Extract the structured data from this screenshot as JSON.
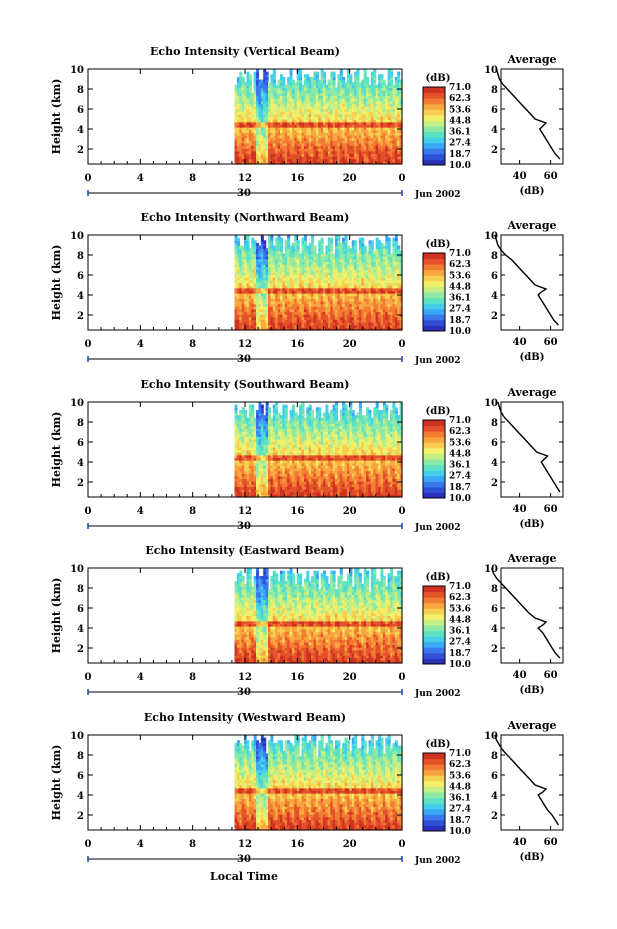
{
  "figure": {
    "xlabel": "Local Time",
    "date_label": "Jun 2002",
    "day_label": "30"
  },
  "colorbar": {
    "unit": "(dB)",
    "ticks": [
      "71.0",
      "62.3",
      "53.6",
      "44.8",
      "36.1",
      "27.4",
      "18.7",
      "10.0"
    ],
    "colors": [
      "#2a2fb8",
      "#2f4fd6",
      "#3a78ee",
      "#3aa8f5",
      "#45d0ea",
      "#5fe2c2",
      "#8ee9a6",
      "#c5ef84",
      "#f2f06a",
      "#f9cf4f",
      "#f8a640",
      "#f37c34",
      "#e4522a",
      "#cf3220"
    ]
  },
  "chart_data": [
    {
      "type": "heatmap",
      "title": "Echo Intensity (Vertical Beam)",
      "ylabel": "Height (km)",
      "x_ticks": [
        "0",
        "4",
        "8",
        "12",
        "16",
        "20",
        "0"
      ],
      "y_ticks": [
        "2",
        "4",
        "6",
        "8",
        "10"
      ],
      "xlim": [
        0,
        24
      ],
      "ylim": [
        0.5,
        10
      ],
      "clim": [
        10.0,
        71.0
      ],
      "data_start_hour": 11.2,
      "bright_band_km": 4.5,
      "profile": {
        "title": "Average",
        "xlabel": "(dB)",
        "x_ticks": [
          "40",
          "60"
        ],
        "y_ticks": [
          "2",
          "4",
          "6",
          "8",
          "10"
        ],
        "height_km": [
          1.0,
          1.5,
          2.0,
          2.5,
          3.0,
          3.5,
          4.0,
          4.3,
          4.6,
          5.0,
          5.5,
          6.0,
          6.5,
          7.0,
          7.5,
          8.0,
          8.5,
          9.0,
          9.5,
          10.0
        ],
        "db": [
          66,
          63,
          61,
          59,
          57,
          55,
          53,
          55,
          57,
          50,
          47,
          44,
          41,
          38,
          35,
          32,
          29,
          27,
          26,
          25
        ]
      }
    },
    {
      "type": "heatmap",
      "title": "Echo Intensity (Northward Beam)",
      "ylabel": "Height (km)",
      "x_ticks": [
        "0",
        "4",
        "8",
        "12",
        "16",
        "20",
        "0"
      ],
      "y_ticks": [
        "2",
        "4",
        "6",
        "8",
        "10"
      ],
      "xlim": [
        0,
        24
      ],
      "ylim": [
        0.5,
        10
      ],
      "clim": [
        10.0,
        71.0
      ],
      "data_start_hour": 11.2,
      "bright_band_km": 4.5,
      "profile": {
        "title": "Average",
        "xlabel": "(dB)",
        "x_ticks": [
          "40",
          "60"
        ],
        "y_ticks": [
          "2",
          "4",
          "6",
          "8",
          "10"
        ],
        "height_km": [
          1.0,
          1.5,
          2.0,
          2.5,
          3.0,
          3.5,
          4.0,
          4.3,
          4.6,
          5.0,
          5.5,
          6.0,
          6.5,
          7.0,
          7.5,
          8.0,
          8.5,
          9.0,
          9.5,
          10.0
        ],
        "db": [
          65,
          62,
          60,
          58,
          56,
          54,
          52,
          54,
          57,
          50,
          47,
          44,
          41,
          38,
          35,
          31,
          28,
          26,
          25,
          24
        ]
      }
    },
    {
      "type": "heatmap",
      "title": "Echo Intensity (Southward Beam)",
      "ylabel": "Height (km)",
      "x_ticks": [
        "0",
        "4",
        "8",
        "12",
        "16",
        "20",
        "0"
      ],
      "y_ticks": [
        "2",
        "4",
        "6",
        "8",
        "10"
      ],
      "xlim": [
        0,
        24
      ],
      "ylim": [
        0.5,
        10
      ],
      "clim": [
        10.0,
        71.0
      ],
      "data_start_hour": 11.2,
      "bright_band_km": 4.5,
      "profile": {
        "title": "Average",
        "xlabel": "(dB)",
        "x_ticks": [
          "40",
          "60"
        ],
        "y_ticks": [
          "2",
          "4",
          "6",
          "8",
          "10"
        ],
        "height_km": [
          1.0,
          1.5,
          2.0,
          2.5,
          3.0,
          3.5,
          4.0,
          4.3,
          4.6,
          5.0,
          5.5,
          6.0,
          6.5,
          7.0,
          7.5,
          8.0,
          8.5,
          9.0,
          9.5,
          10.0
        ],
        "db": [
          66,
          64,
          62,
          60,
          58,
          56,
          54,
          56,
          58,
          51,
          48,
          45,
          42,
          39,
          36,
          33,
          30,
          28,
          27,
          26
        ]
      }
    },
    {
      "type": "heatmap",
      "title": "Echo Intensity (Eastward Beam)",
      "ylabel": "Height (km)",
      "x_ticks": [
        "0",
        "4",
        "8",
        "12",
        "16",
        "20",
        "0"
      ],
      "y_ticks": [
        "2",
        "4",
        "6",
        "8",
        "10"
      ],
      "xlim": [
        0,
        24
      ],
      "ylim": [
        0.5,
        10
      ],
      "clim": [
        10.0,
        71.0
      ],
      "data_start_hour": 11.2,
      "bright_band_km": 4.5,
      "profile": {
        "title": "Average",
        "xlabel": "(dB)",
        "x_ticks": [
          "40",
          "60"
        ],
        "y_ticks": [
          "2",
          "4",
          "6",
          "8",
          "10"
        ],
        "height_km": [
          1.0,
          1.5,
          2.0,
          2.5,
          3.0,
          3.5,
          4.0,
          4.3,
          4.6,
          5.0,
          5.5,
          6.0,
          6.5,
          7.0,
          7.5,
          8.0,
          8.5,
          9.0,
          9.5,
          10.0
        ],
        "db": [
          66,
          63,
          61,
          59,
          57,
          55,
          52,
          55,
          57,
          50,
          46,
          43,
          40,
          37,
          34,
          31,
          28,
          25,
          23,
          22
        ]
      }
    },
    {
      "type": "heatmap",
      "title": "Echo Intensity (Westward Beam)",
      "ylabel": "Height (km)",
      "x_ticks": [
        "0",
        "4",
        "8",
        "12",
        "16",
        "20",
        "0"
      ],
      "y_ticks": [
        "2",
        "4",
        "6",
        "8",
        "10"
      ],
      "xlim": [
        0,
        24
      ],
      "ylim": [
        0.5,
        10
      ],
      "clim": [
        10.0,
        71.0
      ],
      "data_start_hour": 11.2,
      "bright_band_km": 4.5,
      "profile": {
        "title": "Average",
        "xlabel": "(dB)",
        "x_ticks": [
          "40",
          "60"
        ],
        "y_ticks": [
          "2",
          "4",
          "6",
          "8",
          "10"
        ],
        "height_km": [
          1.0,
          1.5,
          2.0,
          2.5,
          3.0,
          3.5,
          4.0,
          4.3,
          4.6,
          5.0,
          5.5,
          6.0,
          6.5,
          7.0,
          7.5,
          8.0,
          8.5,
          9.0,
          9.5,
          10.0
        ],
        "db": [
          65,
          63,
          61,
          58,
          56,
          54,
          52,
          55,
          57,
          50,
          47,
          44,
          41,
          38,
          35,
          32,
          29,
          27,
          25,
          24
        ]
      }
    }
  ]
}
